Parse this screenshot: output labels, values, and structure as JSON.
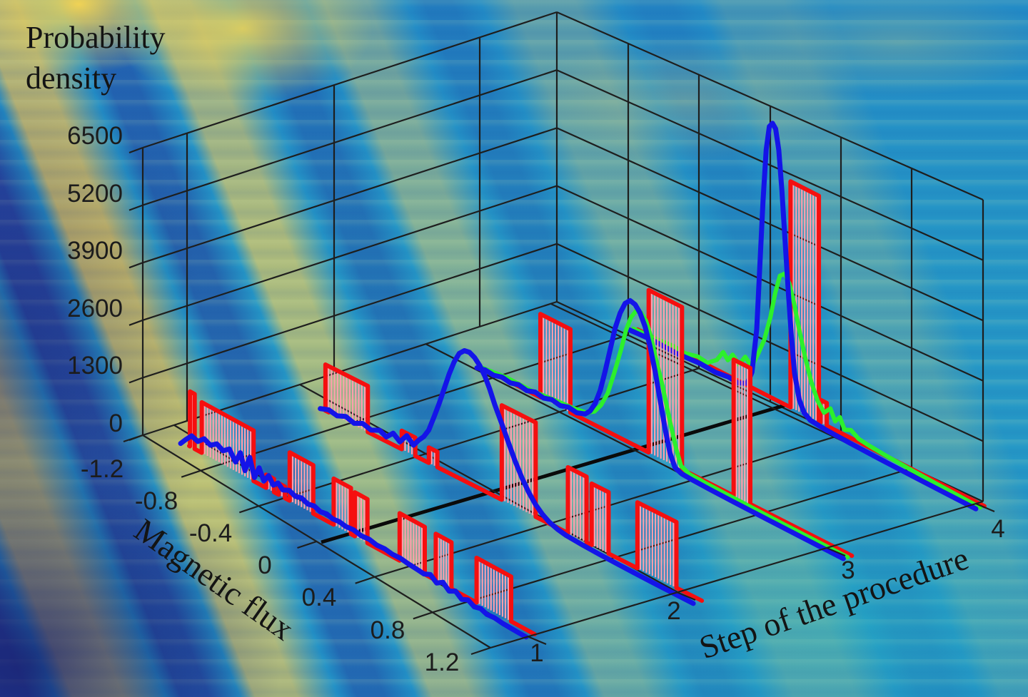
{
  "title": {
    "line1": "Probability",
    "line2": "density"
  },
  "axes": {
    "z": {
      "label_line1": "Probability",
      "label_line2": "density",
      "ticks": [
        "0",
        "1300",
        "2600",
        "3900",
        "5200",
        "6500"
      ],
      "tick_values": [
        0,
        1300,
        2600,
        3900,
        5200,
        6500
      ],
      "range": [
        0,
        6500
      ]
    },
    "flux": {
      "label": "Magnetic flux",
      "ticks": [
        "-1.2",
        "-0.8",
        "-0.4",
        "0",
        "0.4",
        "0.8",
        "1.2"
      ],
      "tick_values": [
        -1.2,
        -0.8,
        -0.4,
        0,
        0.4,
        0.8,
        1.2
      ],
      "range": [
        -1.2,
        1.2
      ]
    },
    "step": {
      "label": "Step of the procedure",
      "ticks": [
        "1",
        "2",
        "3",
        "4"
      ],
      "tick_values": [
        1,
        2,
        3,
        4
      ]
    }
  },
  "colors": {
    "stem_outline": "#f50f0f",
    "stem_fill": "#ff9fae",
    "blue_curve": "#1414e8",
    "green_curve": "#2cf02c",
    "grid": "#1e1e1e",
    "zero_line": "#0a0a0a",
    "text": "#141414",
    "bg_teal": "#2596c6",
    "bg_yellow": "#eecb56",
    "bg_navy": "#2c3996"
  },
  "chart_data": {
    "type": "3d-waterfall",
    "title": "Probability density",
    "xlabel": "Step of the procedure",
    "ylabel": "Magnetic flux",
    "zlabel": "Probability density",
    "zlim": [
      0,
      6500
    ],
    "flux_range": [
      -1.2,
      1.2
    ],
    "grid": true,
    "series_note": "per procedure step: red = stem (histogram) distribution, blue and green = smooth distributions; values in probability-density units read from z axis",
    "series": [
      {
        "step": 1,
        "red_blocks": [
          [
            -1.045,
            -1.015,
            1250
          ],
          [
            -0.97,
            -0.64,
            1150
          ],
          [
            -0.56,
            -0.51,
            300
          ],
          [
            -0.48,
            -0.44,
            260
          ],
          [
            -0.41,
            -0.26,
            1100
          ],
          [
            -0.13,
            -0.02,
            1050
          ],
          [
            0.005,
            0.085,
            1000
          ],
          [
            0.29,
            0.45,
            1080
          ],
          [
            0.52,
            0.62,
            1060
          ],
          [
            0.78,
            1.0,
            1020
          ]
        ],
        "blue": [
          [
            -1.05,
            120
          ],
          [
            -1.02,
            260
          ],
          [
            -0.98,
            430
          ],
          [
            -0.94,
            380
          ],
          [
            -0.9,
            520
          ],
          [
            -0.86,
            450
          ],
          [
            -0.82,
            560
          ],
          [
            -0.78,
            480
          ],
          [
            -0.74,
            600
          ],
          [
            -0.7,
            380
          ],
          [
            -0.67,
            650
          ],
          [
            -0.64,
            300
          ],
          [
            -0.61,
            660
          ],
          [
            -0.58,
            260
          ],
          [
            -0.55,
            540
          ],
          [
            -0.52,
            300
          ],
          [
            -0.49,
            480
          ],
          [
            -0.46,
            320
          ],
          [
            -0.43,
            430
          ],
          [
            -0.4,
            330
          ],
          [
            -0.36,
            400
          ],
          [
            -0.32,
            340
          ],
          [
            -0.28,
            380
          ],
          [
            -0.24,
            320
          ],
          [
            -0.2,
            355
          ],
          [
            -0.16,
            300
          ],
          [
            -0.12,
            330
          ],
          [
            -0.08,
            290
          ],
          [
            -0.04,
            310
          ],
          [
            0,
            280
          ],
          [
            0.05,
            300
          ],
          [
            0.1,
            260
          ],
          [
            0.15,
            280
          ],
          [
            0.2,
            240
          ],
          [
            0.25,
            255
          ],
          [
            0.3,
            225
          ],
          [
            0.35,
            235
          ],
          [
            0.4,
            205
          ],
          [
            0.45,
            190
          ],
          [
            0.5,
            170
          ],
          [
            0.54,
            235
          ],
          [
            0.58,
            120
          ],
          [
            0.62,
            215
          ],
          [
            0.66,
            90
          ],
          [
            0.7,
            170
          ],
          [
            0.74,
            60
          ],
          [
            0.78,
            125
          ],
          [
            0.82,
            45
          ],
          [
            0.86,
            85
          ],
          [
            0.9,
            30
          ],
          [
            0.95,
            45
          ],
          [
            1,
            20
          ],
          [
            1.05,
            12
          ],
          [
            1.1,
            6
          ],
          [
            1.15,
            2
          ]
        ]
      },
      {
        "step": 2,
        "red_blocks": [
          [
            -1.07,
            -0.82,
            1050
          ],
          [
            -0.62,
            -0.54,
            420
          ],
          [
            -0.46,
            -0.41,
            350
          ],
          [
            -0.03,
            0.17,
            2150
          ],
          [
            0.36,
            0.47,
            1500
          ],
          [
            0.5,
            0.6,
            1400
          ],
          [
            0.77,
            1.0,
            1500
          ]
        ],
        "blue": [
          [
            -1.05,
            150
          ],
          [
            -1,
            220
          ],
          [
            -0.95,
            180
          ],
          [
            -0.9,
            265
          ],
          [
            -0.85,
            205
          ],
          [
            -0.8,
            300
          ],
          [
            -0.75,
            245
          ],
          [
            -0.7,
            340
          ],
          [
            -0.66,
            265
          ],
          [
            -0.62,
            430
          ],
          [
            -0.58,
            310
          ],
          [
            -0.54,
            530
          ],
          [
            -0.5,
            390
          ],
          [
            -0.47,
            560
          ],
          [
            -0.44,
            700
          ],
          [
            -0.41,
            910
          ],
          [
            -0.38,
            1260
          ],
          [
            -0.35,
            1620
          ],
          [
            -0.32,
            2020
          ],
          [
            -0.29,
            2420
          ],
          [
            -0.26,
            2760
          ],
          [
            -0.23,
            3010
          ],
          [
            -0.2,
            3130
          ],
          [
            -0.17,
            3150
          ],
          [
            -0.14,
            3090
          ],
          [
            -0.11,
            2970
          ],
          [
            -0.08,
            2790
          ],
          [
            -0.05,
            2540
          ],
          [
            -0.02,
            2240
          ],
          [
            0.02,
            1900
          ],
          [
            0.06,
            1540
          ],
          [
            0.1,
            1190
          ],
          [
            0.14,
            890
          ],
          [
            0.18,
            640
          ],
          [
            0.22,
            440
          ],
          [
            0.26,
            300
          ],
          [
            0.3,
            200
          ],
          [
            0.35,
            130
          ],
          [
            0.4,
            90
          ],
          [
            0.5,
            60
          ],
          [
            0.6,
            42
          ],
          [
            0.7,
            30
          ],
          [
            0.8,
            20
          ],
          [
            0.9,
            12
          ],
          [
            1,
            8
          ],
          [
            1.15,
            2
          ]
        ]
      },
      {
        "step": 3,
        "red_blocks": [
          [
            -0.72,
            -0.54,
            1900
          ],
          [
            -0.07,
            0.13,
            3700
          ],
          [
            0.44,
            0.54,
            3100
          ]
        ],
        "green": [
          [
            -1.05,
            80
          ],
          [
            -0.9,
            140
          ],
          [
            -0.75,
            130
          ],
          [
            -0.6,
            190
          ],
          [
            -0.5,
            215
          ],
          [
            -0.42,
            265
          ],
          [
            -0.37,
            385
          ],
          [
            -0.33,
            610
          ],
          [
            -0.29,
            960
          ],
          [
            -0.25,
            1510
          ],
          [
            -0.21,
            2110
          ],
          [
            -0.18,
            2610
          ],
          [
            -0.15,
            2960
          ],
          [
            -0.12,
            3160
          ],
          [
            -0.09,
            3180
          ],
          [
            -0.06,
            3050
          ],
          [
            -0.03,
            2740
          ],
          [
            0,
            2290
          ],
          [
            0.04,
            1740
          ],
          [
            0.08,
            1090
          ],
          [
            0.12,
            490
          ],
          [
            0.15,
            150
          ],
          [
            0.2,
            60
          ],
          [
            0.3,
            42
          ],
          [
            0.5,
            26
          ],
          [
            0.75,
            12
          ],
          [
            1.05,
            4
          ],
          [
            1.15,
            1
          ]
        ],
        "blue": [
          [
            -1.05,
            100
          ],
          [
            -1,
            150
          ],
          [
            -0.95,
            125
          ],
          [
            -0.9,
            180
          ],
          [
            -0.85,
            145
          ],
          [
            -0.8,
            200
          ],
          [
            -0.75,
            160
          ],
          [
            -0.7,
            225
          ],
          [
            -0.65,
            185
          ],
          [
            -0.6,
            245
          ],
          [
            -0.55,
            205
          ],
          [
            -0.5,
            265
          ],
          [
            -0.45,
            235
          ],
          [
            -0.4,
            305
          ],
          [
            -0.37,
            430
          ],
          [
            -0.34,
            660
          ],
          [
            -0.31,
            1010
          ],
          [
            -0.28,
            1510
          ],
          [
            -0.25,
            2060
          ],
          [
            -0.22,
            2610
          ],
          [
            -0.19,
            3010
          ],
          [
            -0.16,
            3290
          ],
          [
            -0.13,
            3410
          ],
          [
            -0.1,
            3380
          ],
          [
            -0.07,
            3240
          ],
          [
            -0.04,
            2990
          ],
          [
            -0.01,
            2590
          ],
          [
            0.02,
            2090
          ],
          [
            0.05,
            1490
          ],
          [
            0.08,
            890
          ],
          [
            0.11,
            390
          ],
          [
            0.14,
            120
          ],
          [
            0.18,
            60
          ],
          [
            0.25,
            42
          ],
          [
            0.35,
            30
          ],
          [
            0.5,
            20
          ],
          [
            0.7,
            12
          ],
          [
            0.9,
            6
          ],
          [
            1.05,
            3
          ],
          [
            1.15,
            1
          ]
        ]
      },
      {
        "step": 4,
        "red_blocks": [
          [
            -0.08,
            0.1,
            5150
          ],
          [
            0.11,
            0.15,
            520
          ]
        ],
        "green": [
          [
            -1.05,
            50
          ],
          [
            -0.9,
            85
          ],
          [
            -0.8,
            120
          ],
          [
            -0.72,
            92
          ],
          [
            -0.64,
            165
          ],
          [
            -0.58,
            132
          ],
          [
            -0.52,
            310
          ],
          [
            -0.48,
            560
          ],
          [
            -0.45,
            430
          ],
          [
            -0.42,
            610
          ],
          [
            -0.38,
            460
          ],
          [
            -0.34,
            710
          ],
          [
            -0.3,
            560
          ],
          [
            -0.26,
            910
          ],
          [
            -0.22,
            1310
          ],
          [
            -0.18,
            1910
          ],
          [
            -0.15,
            2510
          ],
          [
            -0.12,
            2960
          ],
          [
            -0.09,
            3060
          ],
          [
            -0.06,
            2890
          ],
          [
            -0.03,
            2490
          ],
          [
            0,
            1990
          ],
          [
            0.04,
            1390
          ],
          [
            0.08,
            890
          ],
          [
            0.12,
            540
          ],
          [
            0.16,
            350
          ],
          [
            0.2,
            520
          ],
          [
            0.23,
            280
          ],
          [
            0.26,
            430
          ],
          [
            0.29,
            200
          ],
          [
            0.33,
            265
          ],
          [
            0.38,
            155
          ],
          [
            0.45,
            120
          ],
          [
            0.55,
            90
          ],
          [
            0.7,
            60
          ],
          [
            0.85,
            36
          ],
          [
            1.05,
            12
          ],
          [
            1.15,
            3
          ]
        ],
        "blue": [
          [
            -1.05,
            60
          ],
          [
            -0.9,
            95
          ],
          [
            -0.75,
            72
          ],
          [
            -0.6,
            115
          ],
          [
            -0.5,
            92
          ],
          [
            -0.42,
            135
          ],
          [
            -0.36,
            112
          ],
          [
            -0.3,
            210
          ],
          [
            -0.27,
            520
          ],
          [
            -0.24,
            1550
          ],
          [
            -0.22,
            3050
          ],
          [
            -0.2,
            4550
          ],
          [
            -0.18,
            5750
          ],
          [
            -0.16,
            6320
          ],
          [
            -0.14,
            6430
          ],
          [
            -0.12,
            6340
          ],
          [
            -0.1,
            5890
          ],
          [
            -0.08,
            4990
          ],
          [
            -0.06,
            3890
          ],
          [
            -0.04,
            2790
          ],
          [
            -0.02,
            1790
          ],
          [
            0,
            990
          ],
          [
            0.03,
            440
          ],
          [
            0.06,
            200
          ],
          [
            0.1,
            100
          ],
          [
            0.2,
            62
          ],
          [
            0.35,
            40
          ],
          [
            0.55,
            22
          ],
          [
            0.8,
            12
          ],
          [
            1,
            6
          ],
          [
            1.15,
            2
          ]
        ]
      }
    ]
  }
}
